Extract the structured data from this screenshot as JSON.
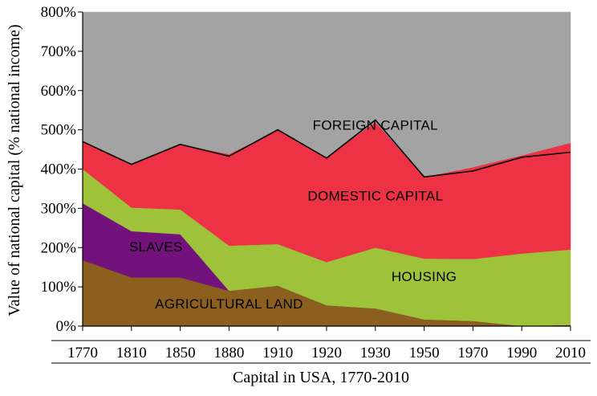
{
  "chart_data": {
    "type": "area",
    "stacked": true,
    "categories": [
      "1770",
      "1810",
      "1850",
      "1880",
      "1910",
      "1920",
      "1930",
      "1950",
      "1970",
      "1990",
      "2010"
    ],
    "x": [
      1770,
      1810,
      1850,
      1880,
      1910,
      1920,
      1930,
      1950,
      1970,
      1990,
      2010
    ],
    "xlabel": "Capital in USA, 1770-2010",
    "ylabel": "Value of national capital (% national income)",
    "ylim": [
      0,
      800
    ],
    "yticks": [
      "0%",
      "100%",
      "200%",
      "300%",
      "400%",
      "500%",
      "600%",
      "700%",
      "800%"
    ],
    "series": [
      {
        "name": "AGRICULTURAL LAND",
        "color": "#8b5f1e",
        "values": [
          168,
          124,
          124,
          90,
          103,
          53,
          45,
          17,
          13,
          0,
          3
        ]
      },
      {
        "name": "SLAVES",
        "color": "#73127c",
        "values": [
          145,
          118,
          110,
          0,
          0,
          0,
          0,
          0,
          0,
          0,
          0
        ]
      },
      {
        "name": "HOUSING",
        "color": "#9ec33a",
        "values": [
          87,
          60,
          63,
          115,
          106,
          110,
          155,
          155,
          158,
          185,
          192
        ]
      },
      {
        "name": "DOMESTIC CAPITAL",
        "color": "#ec3244",
        "values": [
          72,
          112,
          166,
          233,
          290,
          267,
          320,
          208,
          234,
          250,
          272
        ]
      },
      {
        "name": "FOREIGN CAPITAL",
        "color": "#a3a3a3",
        "values": [
          328,
          386,
          337,
          362,
          301,
          370,
          280,
          420,
          395,
          365,
          333
        ]
      }
    ],
    "net_line": {
      "color": "#000000",
      "values": [
        470,
        412,
        463,
        433,
        500,
        428,
        525,
        380,
        395,
        430,
        443
      ]
    },
    "grid": false,
    "legend": "none",
    "labels": [
      {
        "text": "FOREIGN CAPITAL",
        "at": [
          1930,
          500
        ]
      },
      {
        "text": "DOMESTIC CAPITAL",
        "at": [
          1930,
          320
        ]
      },
      {
        "text": "SLAVES",
        "at": [
          1830,
          190
        ]
      },
      {
        "text": "HOUSING",
        "at": [
          1950,
          115
        ]
      },
      {
        "text": "AGRICULTURAL LAND",
        "at": [
          1880,
          45
        ]
      }
    ]
  }
}
